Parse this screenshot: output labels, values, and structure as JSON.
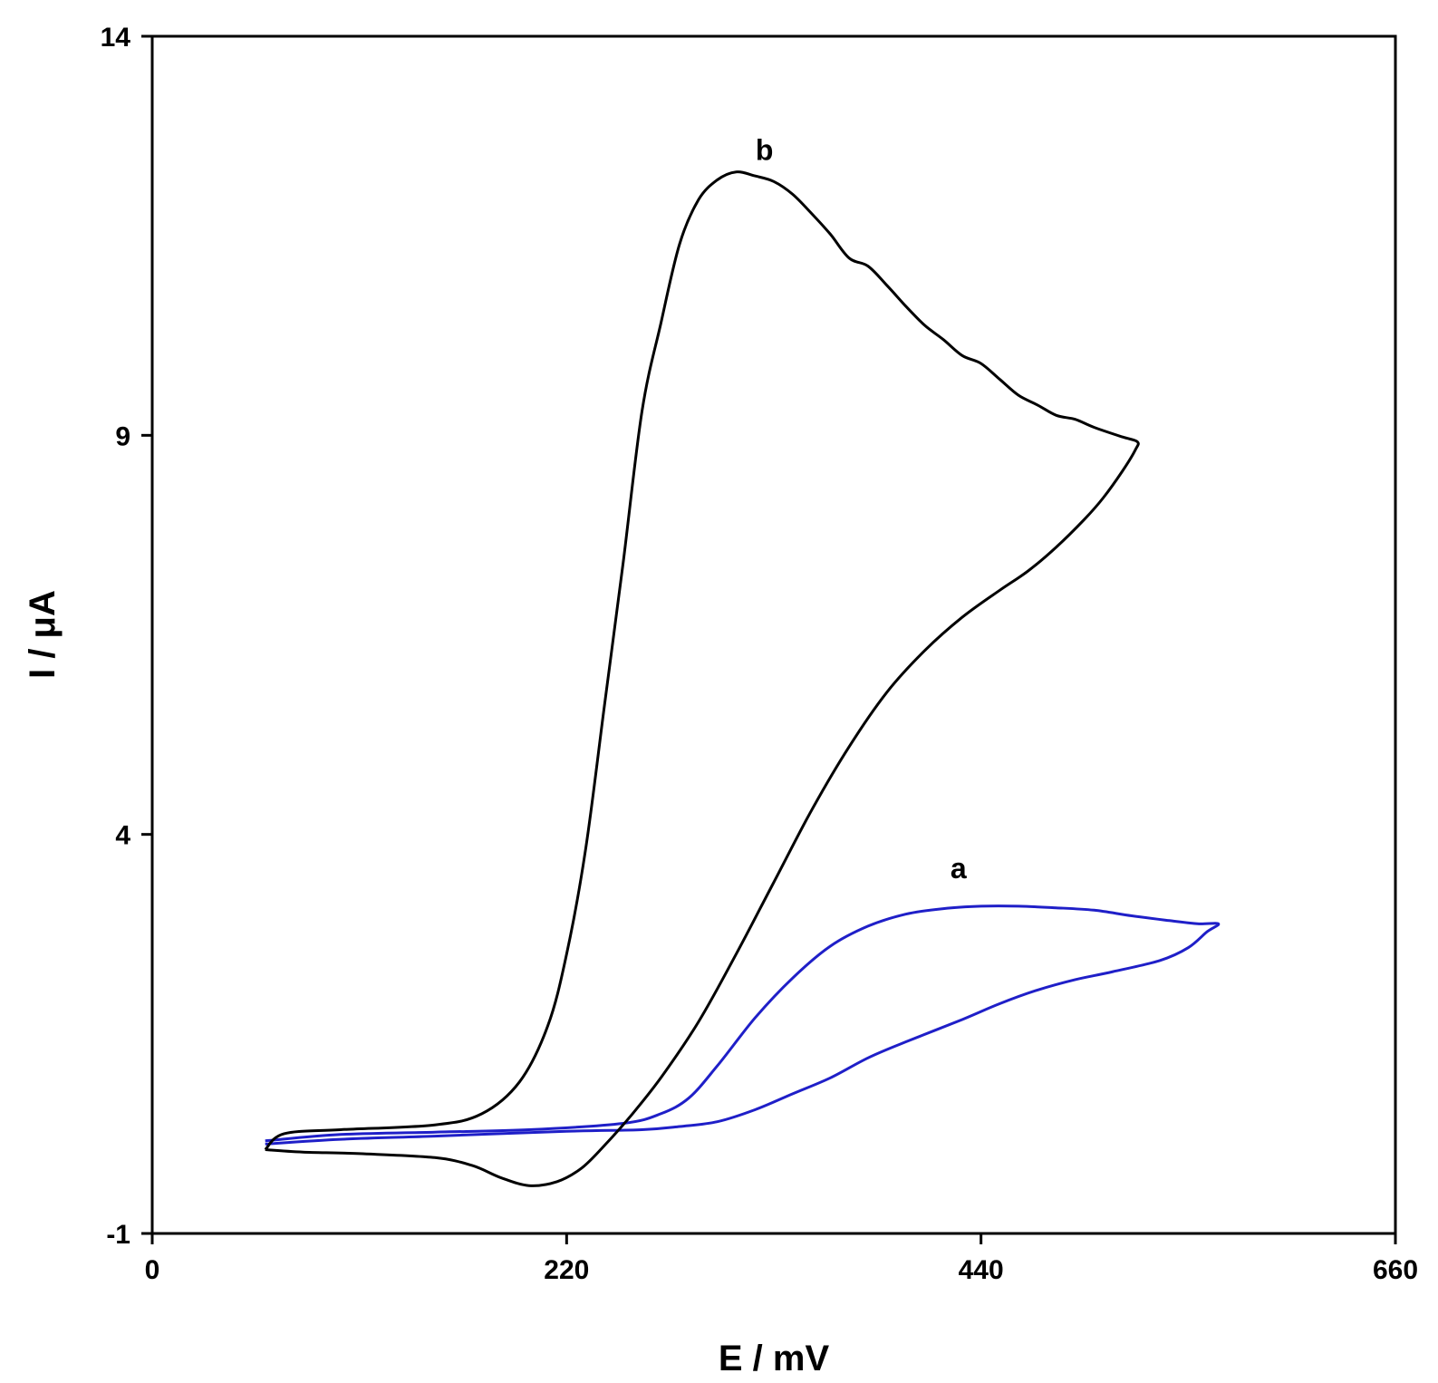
{
  "chart_data": {
    "type": "line",
    "title": "",
    "xlabel": "E / mV",
    "ylabel": "I / μA",
    "xlim": [
      0,
      660
    ],
    "ylim": [
      -1,
      14
    ],
    "xticks": [
      0,
      220,
      440,
      660
    ],
    "yticks": [
      -1,
      4,
      9,
      14
    ],
    "grid": false,
    "legend": "none",
    "series": [
      {
        "name": "a",
        "color": "#1f1fc8",
        "label_at": [
          428,
          3.45
        ],
        "points": [
          [
            60,
            0.16
          ],
          [
            100,
            0.24
          ],
          [
            150,
            0.27
          ],
          [
            200,
            0.3
          ],
          [
            250,
            0.38
          ],
          [
            270,
            0.5
          ],
          [
            285,
            0.7
          ],
          [
            300,
            1.1
          ],
          [
            320,
            1.7
          ],
          [
            340,
            2.2
          ],
          [
            360,
            2.6
          ],
          [
            380,
            2.85
          ],
          [
            400,
            3.0
          ],
          [
            420,
            3.07
          ],
          [
            440,
            3.1
          ],
          [
            460,
            3.1
          ],
          [
            480,
            3.08
          ],
          [
            500,
            3.05
          ],
          [
            520,
            2.98
          ],
          [
            540,
            2.92
          ],
          [
            555,
            2.88
          ],
          [
            566,
            2.88
          ],
          [
            560,
            2.78
          ],
          [
            550,
            2.58
          ],
          [
            535,
            2.42
          ],
          [
            510,
            2.28
          ],
          [
            490,
            2.18
          ],
          [
            470,
            2.05
          ],
          [
            450,
            1.88
          ],
          [
            430,
            1.68
          ],
          [
            400,
            1.4
          ],
          [
            380,
            1.2
          ],
          [
            360,
            0.95
          ],
          [
            340,
            0.75
          ],
          [
            320,
            0.55
          ],
          [
            300,
            0.4
          ],
          [
            280,
            0.34
          ],
          [
            260,
            0.3
          ],
          [
            220,
            0.28
          ],
          [
            150,
            0.22
          ],
          [
            100,
            0.18
          ],
          [
            60,
            0.12
          ]
        ]
      },
      {
        "name": "b",
        "color": "#000000",
        "label_at": [
          325,
          12.45
        ],
        "points": [
          [
            60,
            0.05
          ],
          [
            70,
            0.25
          ],
          [
            100,
            0.3
          ],
          [
            150,
            0.36
          ],
          [
            175,
            0.5
          ],
          [
            195,
            0.9
          ],
          [
            210,
            1.6
          ],
          [
            220,
            2.5
          ],
          [
            230,
            3.8
          ],
          [
            240,
            5.6
          ],
          [
            250,
            7.4
          ],
          [
            260,
            9.3
          ],
          [
            270,
            10.4
          ],
          [
            280,
            11.4
          ],
          [
            290,
            11.95
          ],
          [
            300,
            12.2
          ],
          [
            310,
            12.3
          ],
          [
            320,
            12.25
          ],
          [
            330,
            12.18
          ],
          [
            340,
            12.02
          ],
          [
            350,
            11.78
          ],
          [
            360,
            11.52
          ],
          [
            370,
            11.22
          ],
          [
            380,
            11.12
          ],
          [
            390,
            10.88
          ],
          [
            400,
            10.62
          ],
          [
            410,
            10.38
          ],
          [
            420,
            10.2
          ],
          [
            430,
            10.0
          ],
          [
            440,
            9.9
          ],
          [
            450,
            9.7
          ],
          [
            460,
            9.5
          ],
          [
            470,
            9.38
          ],
          [
            480,
            9.25
          ],
          [
            490,
            9.2
          ],
          [
            500,
            9.1
          ],
          [
            515,
            8.98
          ],
          [
            523,
            8.92
          ],
          [
            522,
            8.82
          ],
          [
            515,
            8.55
          ],
          [
            505,
            8.22
          ],
          [
            495,
            7.95
          ],
          [
            480,
            7.6
          ],
          [
            465,
            7.3
          ],
          [
            450,
            7.06
          ],
          [
            430,
            6.72
          ],
          [
            410,
            6.3
          ],
          [
            390,
            5.78
          ],
          [
            370,
            5.1
          ],
          [
            350,
            4.3
          ],
          [
            330,
            3.4
          ],
          [
            310,
            2.5
          ],
          [
            290,
            1.65
          ],
          [
            270,
            0.95
          ],
          [
            255,
            0.5
          ],
          [
            240,
            0.1
          ],
          [
            228,
            -0.18
          ],
          [
            215,
            -0.35
          ],
          [
            200,
            -0.4
          ],
          [
            185,
            -0.3
          ],
          [
            170,
            -0.15
          ],
          [
            150,
            -0.05
          ],
          [
            110,
            0.0
          ],
          [
            80,
            0.02
          ],
          [
            60,
            0.05
          ]
        ]
      }
    ]
  }
}
